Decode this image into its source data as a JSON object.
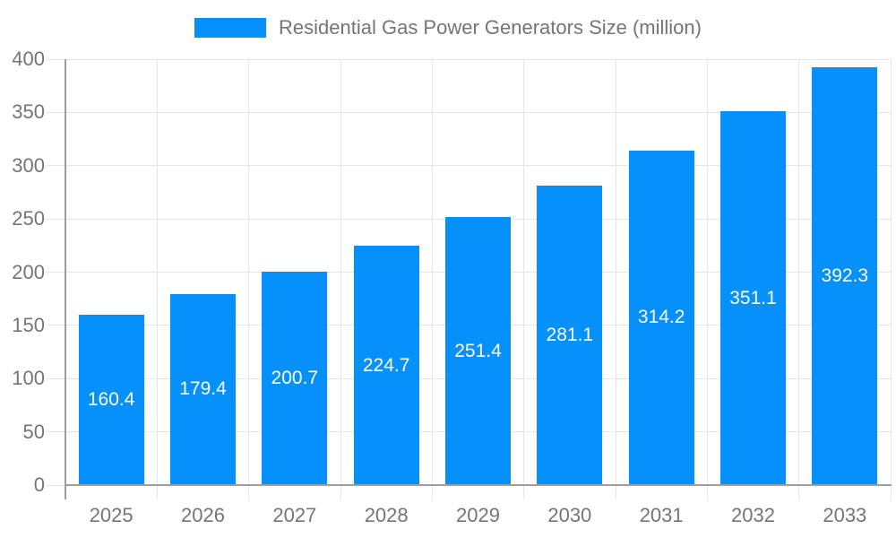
{
  "chart_data": {
    "type": "bar",
    "title": "Residential Gas Power Generators Size (million)",
    "categories": [
      "2025",
      "2026",
      "2027",
      "2028",
      "2029",
      "2030",
      "2031",
      "2032",
      "2033"
    ],
    "series": [
      {
        "name": "Residential Gas Power Generators Size (million)",
        "values": [
          160.4,
          179.4,
          200.7,
          224.7,
          251.4,
          281.1,
          314.2,
          351.1,
          392.3
        ]
      }
    ],
    "xlabel": "",
    "ylabel": "",
    "ylim": [
      0,
      400
    ],
    "yticks": [
      0,
      50,
      100,
      150,
      200,
      250,
      300,
      350,
      400
    ],
    "grid": true,
    "legend_position": "top",
    "value_label_position": "inside-center",
    "colors": {
      "bar": "#0590fa",
      "value_label": "#ffffff",
      "axis_text": "#757575",
      "grid_line": "#e6e6e6",
      "axis_line": "#9e9e9e",
      "background": "#ffffff"
    }
  }
}
